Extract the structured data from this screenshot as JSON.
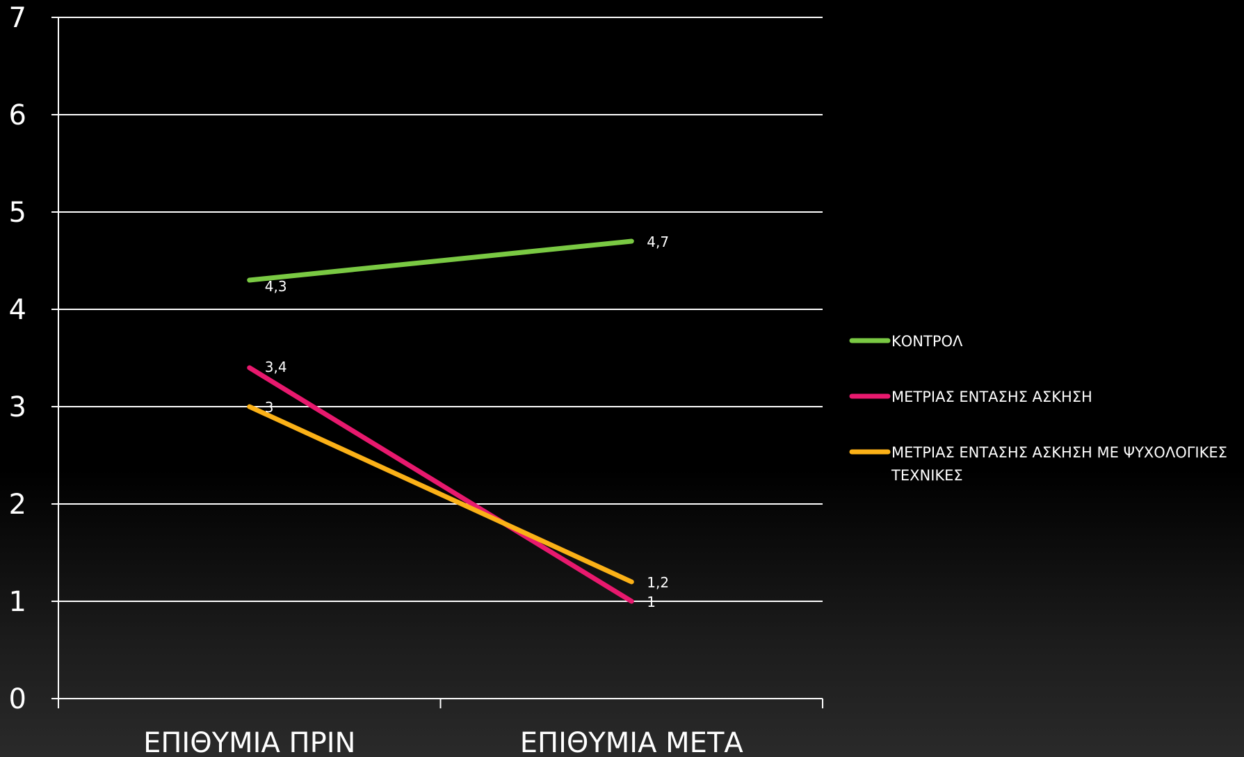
{
  "chart_data": {
    "type": "line",
    "title": "",
    "xlabel": "",
    "ylabel": "",
    "categories": [
      "ΕΠΙΘΥΜΙΑ ΠΡΙΝ",
      "ΕΠΙΘΥΜΙΑ ΜΕΤΑ"
    ],
    "ylim": [
      0,
      7
    ],
    "yticks": [
      0,
      1,
      2,
      3,
      4,
      5,
      6,
      7
    ],
    "grid": true,
    "legend_position": "right",
    "series": [
      {
        "name": "ΚΟΝΤΡΟΛ",
        "values": [
          4.3,
          4.7
        ],
        "data_labels": [
          "4,3",
          "4,7"
        ],
        "color": "#7ac943"
      },
      {
        "name": "ΜΕΤΡΙΑΣ ΕΝΤΑΣΗΣ ΑΣΚΗΣΗ",
        "values": [
          3.4,
          1
        ],
        "data_labels": [
          "3,4",
          "1"
        ],
        "color": "#e8196e"
      },
      {
        "name": "ΜΕΤΡΙΑΣ ΕΝΤΑΣΗΣ ΑΣΚΗΣΗ ΜΕ ΨΥΧΟΛΟΓΙΚΕΣ ΤΕΧΝΙΚΕΣ",
        "legend_lines": [
          "ΜΕΤΡΙΑΣ ΕΝΤΑΣΗΣ ΑΣΚΗΣΗ ΜΕ ΨΥΧΟΛΟΓΙΚΕΣ",
          "ΤΕΧΝΙΚΕΣ"
        ],
        "values": [
          3,
          1.2
        ],
        "data_labels": [
          "3",
          "1,2"
        ],
        "color": "#fbb117"
      }
    ]
  }
}
